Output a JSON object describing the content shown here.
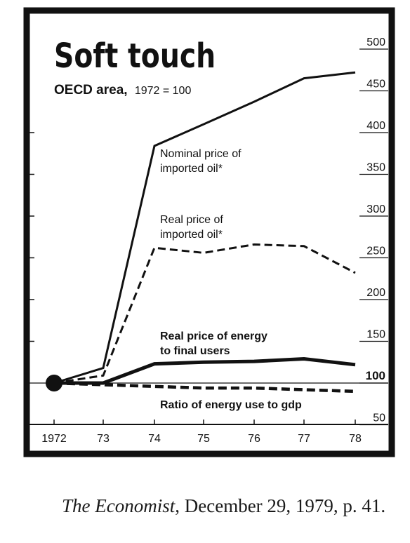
{
  "chart_data": {
    "type": "line",
    "title": "Soft touch",
    "subtitle": "OECD area,",
    "subtitle_index": "1972 = 100",
    "x": [
      "1972",
      "73",
      "74",
      "75",
      "76",
      "77",
      "78"
    ],
    "y_tick_labels": [
      "500",
      "450",
      "400",
      "350",
      "300",
      "250",
      "200",
      "150",
      "100",
      "50"
    ],
    "ylim": [
      50,
      500
    ],
    "grid": false,
    "reference_line": 100,
    "series": [
      {
        "name": "Nominal price of imported oil*",
        "label_lines": [
          "Nominal price of",
          "imported oil*"
        ],
        "style": "solid-thin",
        "values": [
          100,
          118,
          384,
          410,
          437,
          465,
          472
        ]
      },
      {
        "name": "Real price of imported oil*",
        "label_lines": [
          "Real price of",
          "imported oil*"
        ],
        "style": "dashed",
        "values": [
          100,
          109,
          262,
          256,
          266,
          264,
          232
        ]
      },
      {
        "name": "Real price of energy to final users",
        "label_lines": [
          "Real price of energy",
          "to final users"
        ],
        "style": "solid-thick",
        "values": [
          100,
          100,
          123,
          125,
          126,
          129,
          122
        ]
      },
      {
        "name": "Ratio of energy use to gdp",
        "label_lines": [
          "Ratio of energy use to gdp"
        ],
        "style": "dashed-thick",
        "values": [
          100,
          98,
          96,
          94,
          94,
          92,
          90
        ]
      }
    ],
    "colors": {
      "ink": "#111111",
      "paper": "#ffffff"
    }
  },
  "source": {
    "publication": "The Economist",
    "rest": ", December 29, 1979, p. 41."
  }
}
